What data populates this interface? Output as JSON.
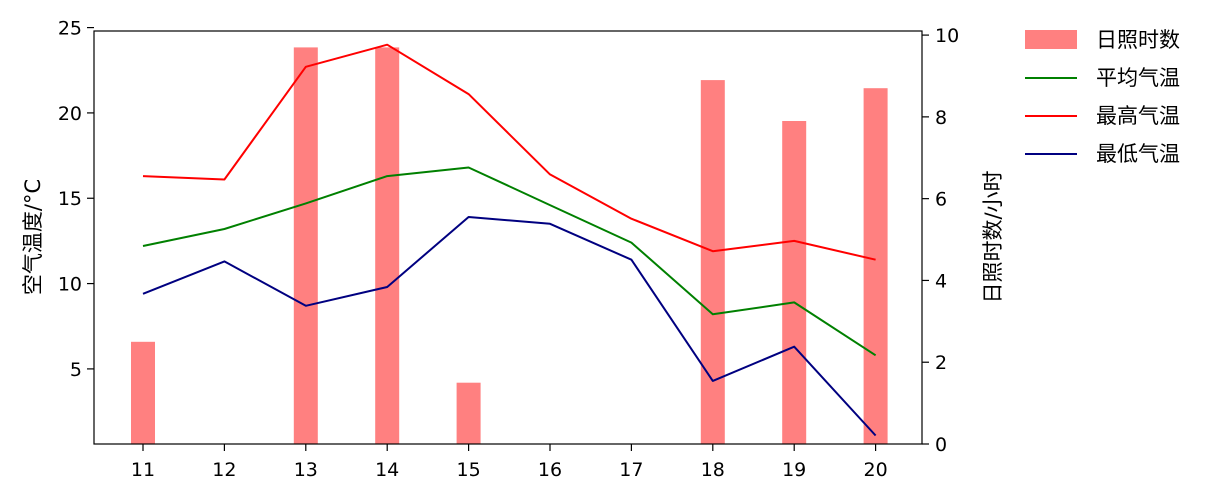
{
  "chart_data": {
    "type": "bar+line",
    "categories": [
      "11",
      "12",
      "13",
      "14",
      "15",
      "16",
      "17",
      "18",
      "19",
      "20"
    ],
    "bars": {
      "name": "日照时数",
      "axis": "right",
      "color": "#ff8080",
      "values": [
        2.5,
        0,
        9.7,
        9.7,
        1.5,
        0,
        0,
        8.9,
        7.9,
        8.7
      ]
    },
    "series": [
      {
        "name": "平均气温",
        "color": "#008000",
        "values": [
          12.2,
          13.2,
          14.7,
          16.3,
          16.8,
          14.6,
          12.4,
          8.2,
          8.9,
          5.8
        ]
      },
      {
        "name": "最高气温",
        "color": "#ff0000",
        "values": [
          16.3,
          16.1,
          22.7,
          24.0,
          21.1,
          16.4,
          13.8,
          11.9,
          12.5,
          11.4
        ]
      },
      {
        "name": "最低气温",
        "color": "#000080",
        "values": [
          9.4,
          11.3,
          8.7,
          9.8,
          13.9,
          13.5,
          11.4,
          4.3,
          6.3,
          1.1
        ]
      }
    ],
    "ylabel_left": "空气温度/°C",
    "ylabel_right": "日照时数/小时",
    "ylim_left": [
      0.6,
      24.8
    ],
    "ylim_right": [
      0,
      10.1
    ],
    "yticks_left": [
      "5",
      "10",
      "15",
      "20",
      "25"
    ],
    "yticks_right": [
      "0",
      "2",
      "4",
      "6",
      "8",
      "10"
    ],
    "grid": false,
    "legend_position": "outside-top-right"
  }
}
